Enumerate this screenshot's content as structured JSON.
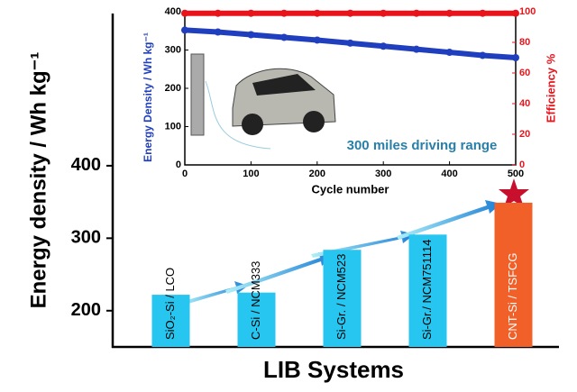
{
  "chart_data": [
    {
      "type": "bar",
      "y_label": "Energy density / Wh kg⁻¹",
      "x_label": "LIB Systems",
      "categories": [
        "SiO₂-Si / LCO",
        "C-Si / NCM333",
        "Si-Gr. / NCM523",
        "Si-Gr./ NCM751114",
        "CNT-Si / TSFCG"
      ],
      "values": [
        222,
        225,
        284,
        305,
        349
      ],
      "colors": [
        "#27c6f0",
        "#27c6f0",
        "#27c6f0",
        "#27c6f0",
        "#f2602a"
      ],
      "ylim": [
        150,
        610
      ],
      "yticks": [
        200,
        300,
        400
      ]
    },
    {
      "type": "scatter",
      "x_label": "Cycle number",
      "y_label": "Energy Density / Wh kg⁻¹",
      "y2_label": "Efficiency %",
      "annotation": "300 miles driving range",
      "x": [
        0,
        50,
        100,
        150,
        200,
        250,
        300,
        350,
        400,
        450,
        500
      ],
      "series": [
        {
          "name": "Energy Density",
          "color": "#1f3fbf",
          "values": [
            352,
            347,
            340,
            333,
            326,
            318,
            310,
            302,
            294,
            286,
            280
          ]
        },
        {
          "name": "Efficiency",
          "color": "#e8141c",
          "axis": "y2",
          "values": [
            99,
            99,
            99,
            99,
            99,
            99,
            99,
            99,
            99,
            99,
            99
          ]
        }
      ],
      "xlim": [
        0,
        500
      ],
      "xticks": [
        0,
        100,
        200,
        300,
        400,
        500
      ],
      "ylim": [
        0,
        400
      ],
      "yticks": [
        0,
        100,
        200,
        300,
        400
      ],
      "y2lim": [
        0,
        100
      ],
      "y2ticks": [
        0,
        20,
        40,
        60,
        80,
        100
      ]
    }
  ]
}
